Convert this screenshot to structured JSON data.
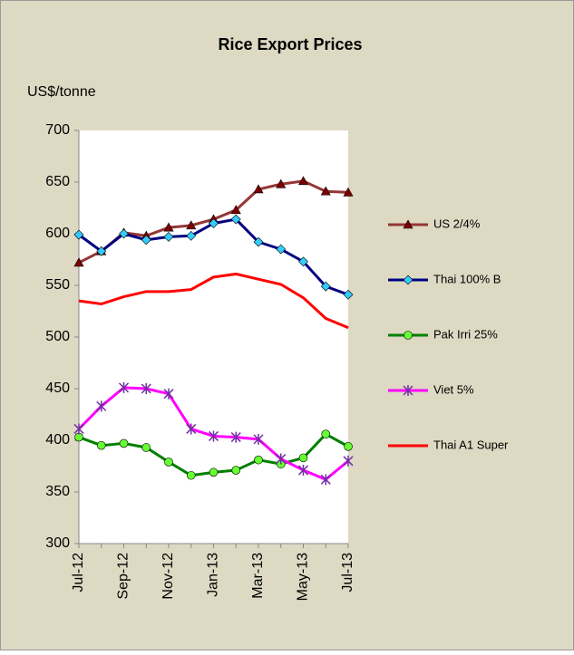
{
  "chart_data": {
    "type": "line",
    "title": "Rice Export Prices",
    "y_label": "US$/tonne",
    "categories": [
      "Jul-12",
      null,
      "Sep-12",
      null,
      "Nov-12",
      null,
      "Jan-13",
      null,
      "Mar-13",
      null,
      "May-13",
      null,
      "Jul-13"
    ],
    "ylim": [
      300,
      700
    ],
    "yticks": [
      300,
      350,
      400,
      450,
      500,
      550,
      600,
      650,
      700
    ],
    "series": [
      {
        "name": "US 2/4%",
        "color": "#953735",
        "marker": "triangle",
        "marker_color": "#7f0000",
        "values": [
          572,
          583,
          601,
          598,
          606,
          608,
          614,
          623,
          643,
          648,
          651,
          641,
          640
        ]
      },
      {
        "name": "Thai 100%  B",
        "color": "#000080",
        "marker": "diamond",
        "marker_color": "#33ccff",
        "values": [
          599,
          583,
          600,
          594,
          597,
          598,
          610,
          614,
          592,
          585,
          573,
          549,
          541
        ]
      },
      {
        "name": "Pak Irri 25%",
        "color": "#008000",
        "marker": "circle",
        "marker_color": "#66ff33",
        "values": [
          403,
          395,
          397,
          393,
          379,
          366,
          369,
          371,
          381,
          377,
          383,
          406,
          394
        ]
      },
      {
        "name": "Viet 5%",
        "color": "#ff00ff",
        "marker": "star",
        "marker_color": "#7030a0",
        "values": [
          411,
          433,
          451,
          450,
          445,
          411,
          404,
          403,
          401,
          382,
          371,
          362,
          380
        ]
      },
      {
        "name": "Thai A1 Super",
        "color": "#ff0000",
        "marker": "none",
        "marker_color": "#ff0000",
        "values": [
          535,
          532,
          539,
          544,
          544,
          546,
          558,
          561,
          556,
          551,
          538,
          518,
          509
        ]
      }
    ]
  }
}
